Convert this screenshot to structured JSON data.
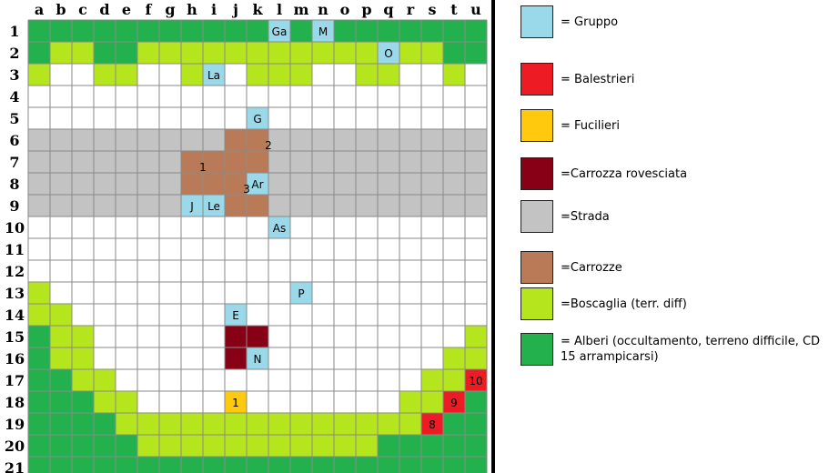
{
  "columns": [
    "a",
    "b",
    "c",
    "d",
    "e",
    "f",
    "g",
    "h",
    "i",
    "j",
    "k",
    "l",
    "m",
    "n",
    "o",
    "p",
    "q",
    "r",
    "s",
    "t",
    "u"
  ],
  "rows": [
    "1",
    "2",
    "3",
    "4",
    "5",
    "6",
    "7",
    "8",
    "9",
    "10",
    "11",
    "12",
    "13",
    "14",
    "15",
    "16",
    "17",
    "18",
    "19",
    "20",
    "21"
  ],
  "colors": {
    "gruppo": "#99d9ea",
    "balestrieri": "#ed1c24",
    "fucilieri": "#ffc90e",
    "carrozza_rovesciata": "#880015",
    "strada": "#c3c3c3",
    "carrozze": "#b97a57",
    "boscaglia": "#b5e61d",
    "alberi": "#22b14c",
    "empty": "#ffffff",
    "gridline": "#8a8a8a"
  },
  "terrain_runs": [
    [
      "1",
      [
        [
          "alberi",
          "a",
          "u"
        ]
      ]
    ],
    [
      "2",
      [
        [
          "alberi",
          "a",
          "a"
        ],
        [
          "boscaglia",
          "b",
          "c"
        ],
        [
          "alberi",
          "d",
          "e"
        ],
        [
          "boscaglia",
          "f",
          "q"
        ],
        [
          "boscaglia",
          "r",
          "s"
        ],
        [
          "alberi",
          "t",
          "u"
        ]
      ]
    ],
    [
      "3",
      [
        [
          "boscaglia",
          "a",
          "a"
        ],
        [
          "boscaglia",
          "d",
          "e"
        ],
        [
          "boscaglia",
          "h",
          "h"
        ],
        [
          "boscaglia",
          "k",
          "m"
        ],
        [
          "boscaglia",
          "p",
          "q"
        ],
        [
          "boscaglia",
          "t",
          "t"
        ]
      ]
    ],
    [
      "6",
      [
        [
          "strada",
          "a",
          "u"
        ]
      ]
    ],
    [
      "7",
      [
        [
          "strada",
          "a",
          "u"
        ]
      ]
    ],
    [
      "8",
      [
        [
          "strada",
          "a",
          "u"
        ]
      ]
    ],
    [
      "9",
      [
        [
          "strada",
          "a",
          "u"
        ]
      ]
    ],
    [
      "13",
      [
        [
          "boscaglia",
          "a",
          "a"
        ]
      ]
    ],
    [
      "14",
      [
        [
          "boscaglia",
          "a",
          "b"
        ]
      ]
    ],
    [
      "15",
      [
        [
          "alberi",
          "a",
          "a"
        ],
        [
          "boscaglia",
          "b",
          "c"
        ],
        [
          "boscaglia",
          "u",
          "u"
        ]
      ]
    ],
    [
      "16",
      [
        [
          "alberi",
          "a",
          "a"
        ],
        [
          "boscaglia",
          "b",
          "c"
        ],
        [
          "boscaglia",
          "t",
          "u"
        ]
      ]
    ],
    [
      "17",
      [
        [
          "alberi",
          "a",
          "b"
        ],
        [
          "boscaglia",
          "c",
          "d"
        ],
        [
          "boscaglia",
          "s",
          "t"
        ]
      ]
    ],
    [
      "18",
      [
        [
          "alberi",
          "a",
          "c"
        ],
        [
          "boscaglia",
          "d",
          "e"
        ],
        [
          "boscaglia",
          "r",
          "s"
        ],
        [
          "alberi",
          "u",
          "u"
        ]
      ]
    ],
    [
      "19",
      [
        [
          "alberi",
          "a",
          "d"
        ],
        [
          "boscaglia",
          "e",
          "q"
        ],
        [
          "boscaglia",
          "r",
          "r"
        ],
        [
          "alberi",
          "t",
          "u"
        ]
      ]
    ],
    [
      "20",
      [
        [
          "alberi",
          "a",
          "e"
        ],
        [
          "boscaglia",
          "f",
          "p"
        ],
        [
          "alberi",
          "q",
          "u"
        ]
      ]
    ],
    [
      "21",
      [
        [
          "alberi",
          "a",
          "u"
        ]
      ]
    ]
  ],
  "objects": [
    [
      "carrozze",
      "k",
      "6"
    ],
    [
      "carrozze",
      "j",
      "6"
    ],
    [
      "carrozze",
      "h",
      "7"
    ],
    [
      "carrozze",
      "i",
      "7"
    ],
    [
      "carrozze",
      "j",
      "7"
    ],
    [
      "carrozze",
      "k",
      "7"
    ],
    [
      "carrozze",
      "h",
      "8"
    ],
    [
      "carrozze",
      "i",
      "8"
    ],
    [
      "carrozze",
      "j",
      "8"
    ],
    [
      "carrozze",
      "j",
      "9"
    ],
    [
      "carrozze",
      "k",
      "9"
    ],
    [
      "carrozza_rovesciata",
      "j",
      "15"
    ],
    [
      "carrozza_rovesciata",
      "k",
      "15"
    ],
    [
      "carrozza_rovesciata",
      "j",
      "16"
    ]
  ],
  "tokens": [
    [
      "gruppo",
      "l",
      "1",
      "Ga"
    ],
    [
      "gruppo",
      "n",
      "1",
      "M"
    ],
    [
      "gruppo",
      "q",
      "2",
      "O"
    ],
    [
      "gruppo",
      "i",
      "3",
      "La"
    ],
    [
      "gruppo",
      "k",
      "5",
      "G"
    ],
    [
      "gruppo",
      "k",
      "8",
      "Ar"
    ],
    [
      "gruppo",
      "h",
      "9",
      "J"
    ],
    [
      "gruppo",
      "i",
      "9",
      "Le"
    ],
    [
      "gruppo",
      "l",
      "10",
      "As"
    ],
    [
      "gruppo",
      "m",
      "13",
      "P"
    ],
    [
      "gruppo",
      "j",
      "14",
      "E"
    ],
    [
      "gruppo",
      "k",
      "16",
      "N"
    ],
    [
      "fucilieri",
      "j",
      "18",
      "1"
    ],
    [
      "balestrieri",
      "s",
      "19",
      "8"
    ],
    [
      "balestrieri",
      "t",
      "18",
      "9"
    ],
    [
      "balestrieri",
      "u",
      "17",
      "10"
    ]
  ],
  "carriage_numbers": [
    [
      "1",
      "h",
      "7"
    ],
    [
      "2",
      "k",
      "6"
    ],
    [
      "3",
      "j",
      "8"
    ]
  ],
  "legend": [
    {
      "key": "gruppo",
      "label": "= Gruppo"
    },
    {
      "key": "balestrieri",
      "label": "= Balestrieri"
    },
    {
      "key": "fucilieri",
      "label": "= Fucilieri"
    },
    {
      "key": "carrozza_rovesciata",
      "label": "=Carrozza rovesciata"
    },
    {
      "key": "strada",
      "label": "=Strada"
    },
    {
      "key": "carrozze",
      "label": "=Carrozze"
    },
    {
      "key": "boscaglia",
      "label": "=Boscaglia (terr. diff)"
    },
    {
      "key": "alberi",
      "label": "= Alberi (occultamento, terreno difficile, CD 15 arrampicarsi)"
    }
  ]
}
